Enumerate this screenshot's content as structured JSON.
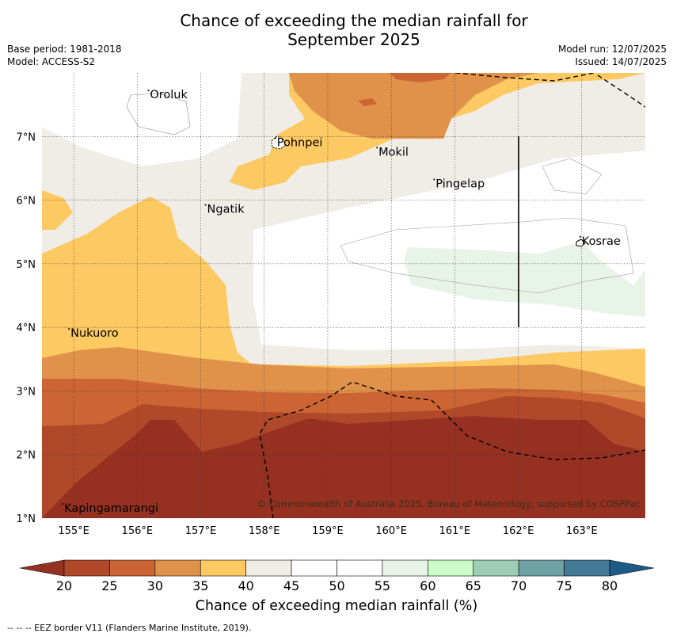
{
  "title_line1": "Chance of exceeding the median rainfall for",
  "title_line2": "September 2025",
  "meta_left": [
    "Base period: 1981-2018",
    "Model: ACCESS-S2"
  ],
  "meta_right": [
    "Model run: 12/07/2025",
    "Issued: 14/07/2025"
  ],
  "axes": {
    "lon_ticks": [
      "155°E",
      "156°E",
      "157°E",
      "158°E",
      "159°E",
      "160°E",
      "161°E",
      "162°E",
      "163°E"
    ],
    "lat_ticks": [
      "7°N",
      "6°N",
      "5°N",
      "4°N",
      "3°N",
      "2°N",
      "1°N"
    ],
    "lon_range": [
      154.5,
      164
    ],
    "lat_range": [
      1,
      8
    ],
    "grid": true
  },
  "places": [
    {
      "name": "Oroluk",
      "lon": 156.2,
      "lat": 7.6
    },
    {
      "name": "Pohnpei",
      "lon": 158.2,
      "lat": 6.85
    },
    {
      "name": "Mokil",
      "lon": 159.8,
      "lat": 6.7
    },
    {
      "name": "Pingelap",
      "lon": 160.7,
      "lat": 6.2
    },
    {
      "name": "Ngatik",
      "lon": 157.1,
      "lat": 5.8
    },
    {
      "name": "Kosrae",
      "lon": 163.0,
      "lat": 5.3
    },
    {
      "name": "Nukuoro",
      "lon": 154.95,
      "lat": 3.85
    },
    {
      "name": "Kapingamarangi",
      "lon": 154.85,
      "lat": 1.1
    }
  ],
  "copyright": "© Commonwealth of Australia 2025, Bureau of Meteorology, supported by COSPPac",
  "colorbar": {
    "ticks": [
      "20",
      "25",
      "30",
      "35",
      "40",
      "45",
      "50",
      "55",
      "60",
      "65",
      "70",
      "75",
      "80"
    ],
    "colors": [
      "#b0482a",
      "#cc6433",
      "#e0924a",
      "#fdc963",
      "#f0ece6",
      "#ffffff",
      "#ffffff",
      "#e9f4e8",
      "#ccfbc8",
      "#9ecfb6",
      "#6fa2a4",
      "#437a95"
    ],
    "under_color": "#963122",
    "over_color": "#1d5a85",
    "label": "Chance of exceeding median rainfall (%)"
  },
  "footnote": "--  --  -- EEZ border V11 (Flanders Marine Institute, 2019)."
}
